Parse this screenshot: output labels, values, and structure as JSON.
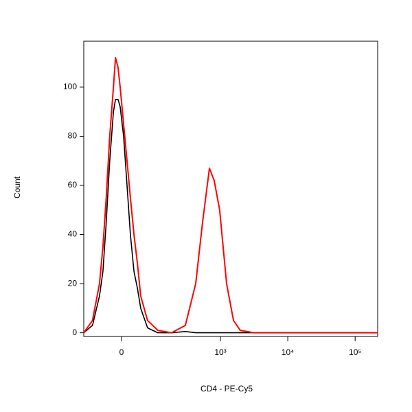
{
  "chart_data": {
    "type": "line",
    "x_label": "CD4 - PE-Cy5",
    "y_label": "Count",
    "xscale": "biexponential",
    "x": [
      -114,
      -79,
      -56,
      -46,
      -37,
      -28,
      -19,
      -14,
      -8,
      -3,
      5,
      13,
      21,
      30,
      39,
      48,
      69,
      108,
      182,
      298,
      427,
      541,
      685,
      807,
      974,
      1234,
      1561,
      1972,
      3155,
      216000
    ],
    "series": [
      {
        "color": "#000000",
        "values": [
          0,
          3,
          15,
          25,
          45,
          70,
          90,
          95,
          95,
          92,
          80,
          60,
          40,
          25,
          18,
          10,
          2,
          0,
          0,
          0.5,
          0,
          0,
          0,
          0,
          0,
          0,
          0,
          0,
          0,
          0
        ]
      },
      {
        "color": "#ff0000",
        "values": [
          0,
          5,
          20,
          35,
          55,
          80,
          100,
          112,
          108,
          100,
          85,
          70,
          55,
          40,
          28,
          15,
          5,
          1,
          0,
          3,
          20,
          45,
          67,
          62,
          50,
          20,
          5,
          1,
          0,
          0
        ]
      }
    ],
    "xlim": [
      -114,
      216000
    ],
    "xticks": [
      0,
      {
        "value": 1000,
        "label": "10³"
      },
      {
        "value": 10000,
        "label": "10⁴"
      },
      {
        "value": 100000,
        "label": "10⁵"
      }
    ],
    "ylim": [
      -1.5,
      118.7
    ],
    "yticks": [
      0,
      20,
      40,
      60,
      80,
      100
    ],
    "grid": false
  }
}
